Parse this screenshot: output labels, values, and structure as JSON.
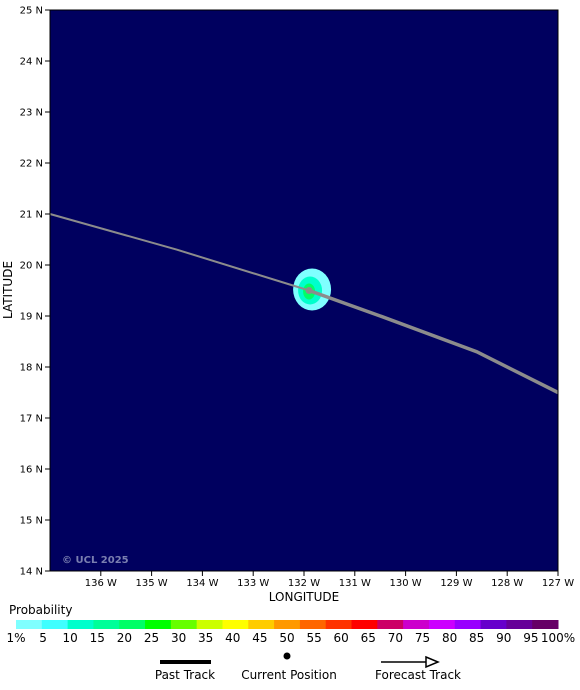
{
  "map": {
    "lat_labels": [
      "25 N",
      "24 N",
      "23 N",
      "22 N",
      "21 N",
      "20 N",
      "19 N",
      "18 N",
      "17 N",
      "16 N",
      "15 N",
      "14 N"
    ],
    "lon_labels": [
      "136 W",
      "135 W",
      "134 W",
      "133 W",
      "132 W",
      "131 W",
      "130 W",
      "129 W",
      "128 W",
      "127 W"
    ],
    "ylabel": "LATITUDE",
    "xlabel": "LONGITUDE",
    "copyright": "© UCL 2025",
    "background_color": "#00005f",
    "lat_range": [
      14,
      25
    ],
    "lon_range": [
      -137,
      -127
    ],
    "past_track": [
      [
        -137.0,
        21.0
      ],
      [
        -134.5,
        20.3
      ],
      [
        -131.9,
        19.5
      ]
    ],
    "forecast_track": [
      [
        -131.9,
        19.5
      ],
      [
        -130.5,
        19.0
      ],
      [
        -128.6,
        18.3
      ],
      [
        -127.0,
        17.5
      ]
    ],
    "current_position": [
      -131.9,
      19.5
    ],
    "probability_blob_center": [
      -131.9,
      19.5
    ]
  },
  "legend": {
    "title": "Probability",
    "labels": [
      "1%",
      "5",
      "10",
      "15",
      "20",
      "25",
      "30",
      "35",
      "40",
      "45",
      "50",
      "55",
      "60",
      "65",
      "70",
      "75",
      "80",
      "85",
      "90",
      "95",
      "100%"
    ],
    "colors": [
      "#7fffff",
      "#3fffff",
      "#00ffcc",
      "#00ff99",
      "#00ff66",
      "#00ff00",
      "#66ff00",
      "#ccff00",
      "#ffff00",
      "#ffcc00",
      "#ff9900",
      "#ff6600",
      "#ff3300",
      "#ff0000",
      "#cc0066",
      "#cc00cc",
      "#cc00ff",
      "#9900ff",
      "#6600cc",
      "#660099",
      "#660066"
    ],
    "past_track_label": "Past Track",
    "current_position_label": "Current Position",
    "forecast_track_label": "Forecast Track"
  }
}
